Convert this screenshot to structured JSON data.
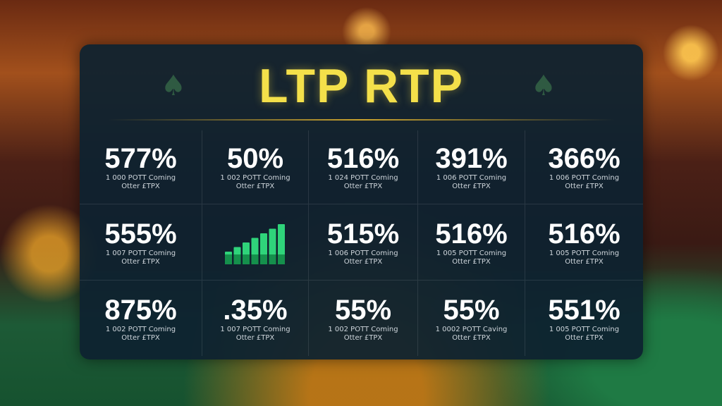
{
  "header": {
    "title": "LTP RTP"
  },
  "table": {
    "rows": [
      [
        {
          "value": "577%",
          "line1": "1 000 POTT Coming",
          "line2": "Otter £TPX"
        },
        {
          "value": "50%",
          "line1": "1 002 POTT Coming",
          "line2": "Otter £TPX"
        },
        {
          "value": "516%",
          "line1": "1 024 POTT Coming",
          "line2": "Otter £TPX"
        },
        {
          "value": "391%",
          "line1": "1 006 POTT Coming",
          "line2": "Otter £TPX"
        },
        {
          "value": "366%",
          "line1": "1 006 POTT Coming",
          "line2": "Otter £TPX"
        }
      ],
      [
        {
          "value": "555%",
          "line1": "1 007 POTT Coming",
          "line2": "Otter £TPX"
        },
        {
          "value": "515%",
          "line1": "1 006 POTT Coming",
          "line2": "Otter £TPX"
        },
        {
          "value": "516%",
          "line1": "1 005 POTT Coming",
          "line2": "Otter £TPX"
        },
        {
          "value": "516%",
          "line1": "1 005 POTT Coming",
          "line2": "Otter £TPX"
        }
      ],
      [
        {
          "value": "875%",
          "line1": "1 002 POTT Coming",
          "line2": "Otter £TPX"
        },
        {
          "value": ".35%",
          "line1": "1 007 POTT Coming",
          "line2": "Otter £TPX"
        },
        {
          "value": "55%",
          "line1": "1 002 POTT Coming",
          "line2": "Otter £TPX"
        },
        {
          "value": "55%",
          "line1": "1 0002 POTT Caving",
          "line2": "Otter £TPX"
        },
        {
          "value": "551%",
          "line1": "1 005 POTT Coming",
          "line2": "Otter £TPX"
        }
      ]
    ]
  }
}
